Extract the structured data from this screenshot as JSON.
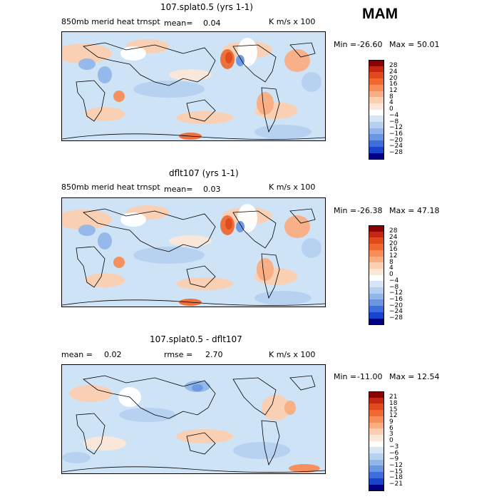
{
  "season": "MAM",
  "panels": [
    {
      "title": "107.splat0.5 (yrs 1-1)",
      "subtitle": "850mb merid heat trnspt",
      "mean_label": "mean=",
      "mean_value": "0.04",
      "units": "K m/s x 100",
      "min_label": "Min =",
      "min_value": "-26.60",
      "max_label": "Max =",
      "max_value": "50.01",
      "colorbar": {
        "levels": [
          "28",
          "24",
          "20",
          "16",
          "12",
          "8",
          "4",
          "0",
          "−4",
          "−8",
          "−12",
          "−16",
          "−20",
          "−24",
          "−28"
        ],
        "colors": [
          "#8b0000",
          "#c4270f",
          "#e04a1c",
          "#ee6a32",
          "#f68c56",
          "#f9ad81",
          "#fbcfb0",
          "#fbe7d8",
          "#ffffff",
          "#d6e6f7",
          "#b5d0f0",
          "#92b6ea",
          "#6a96e2",
          "#3f6edc",
          "#1843cc",
          "#000080"
        ]
      }
    },
    {
      "title": "dflt107 (yrs 1-1)",
      "subtitle": "850mb merid heat trnspt",
      "mean_label": "mean=",
      "mean_value": "0.03",
      "units": "K m/s x 100",
      "min_label": "Min =",
      "min_value": "-26.38",
      "max_label": "Max =",
      "max_value": "47.18",
      "colorbar": {
        "levels": [
          "28",
          "24",
          "20",
          "16",
          "12",
          "8",
          "4",
          "0",
          "−4",
          "−8",
          "−12",
          "−16",
          "−20",
          "−24",
          "−28"
        ],
        "colors": [
          "#8b0000",
          "#c4270f",
          "#e04a1c",
          "#ee6a32",
          "#f68c56",
          "#f9ad81",
          "#fbcfb0",
          "#fbe7d8",
          "#ffffff",
          "#d6e6f7",
          "#b5d0f0",
          "#92b6ea",
          "#6a96e2",
          "#3f6edc",
          "#1843cc",
          "#000080"
        ]
      }
    },
    {
      "title": "107.splat0.5 - dflt107",
      "mean_label": "mean =",
      "mean_value": "0.02",
      "rmse_label": "rmse =",
      "rmse_value": "2.70",
      "units": "K m/s x 100",
      "min_label": "Min =",
      "min_value": "-11.00",
      "max_label": "Max =",
      "max_value": "12.54",
      "colorbar": {
        "levels": [
          "21",
          "18",
          "15",
          "12",
          "9",
          "6",
          "3",
          "0",
          "−3",
          "−6",
          "−9",
          "−12",
          "−15",
          "−18",
          "−21"
        ],
        "colors": [
          "#8b0000",
          "#c4270f",
          "#e04a1c",
          "#ee6a32",
          "#f68c56",
          "#f9ad81",
          "#fbcfb0",
          "#fbe7d8",
          "#ffffff",
          "#d6e6f7",
          "#b5d0f0",
          "#92b6ea",
          "#6a96e2",
          "#3f6edc",
          "#1843cc",
          "#000080"
        ]
      }
    }
  ],
  "chart_data": {
    "type": "heatmap",
    "title": "MAM",
    "xlabel": "",
    "ylabel": "",
    "panels": [
      {
        "name": "107.splat0.5 (yrs 1-1)",
        "variable": "850mb merid heat trnspt",
        "mean": 0.04,
        "min": -26.6,
        "max": 50.01,
        "units": "K m/s x 100",
        "contour_interval": 4,
        "levels": [
          -28,
          -24,
          -20,
          -16,
          -12,
          -8,
          -4,
          0,
          4,
          8,
          12,
          16,
          20,
          24,
          28
        ]
      },
      {
        "name": "dflt107 (yrs 1-1)",
        "variable": "850mb merid heat trnspt",
        "mean": 0.03,
        "min": -26.38,
        "max": 47.18,
        "units": "K m/s x 100",
        "contour_interval": 4,
        "levels": [
          -28,
          -24,
          -20,
          -16,
          -12,
          -8,
          -4,
          0,
          4,
          8,
          12,
          16,
          20,
          24,
          28
        ]
      },
      {
        "name": "107.splat0.5 - dflt107",
        "mean": 0.02,
        "rmse": 2.7,
        "min": -11.0,
        "max": 12.54,
        "units": "K m/s x 100",
        "contour_interval": 3,
        "levels": [
          -21,
          -18,
          -15,
          -12,
          -9,
          -6,
          -3,
          0,
          3,
          6,
          9,
          12,
          15,
          18,
          21
        ]
      }
    ]
  }
}
